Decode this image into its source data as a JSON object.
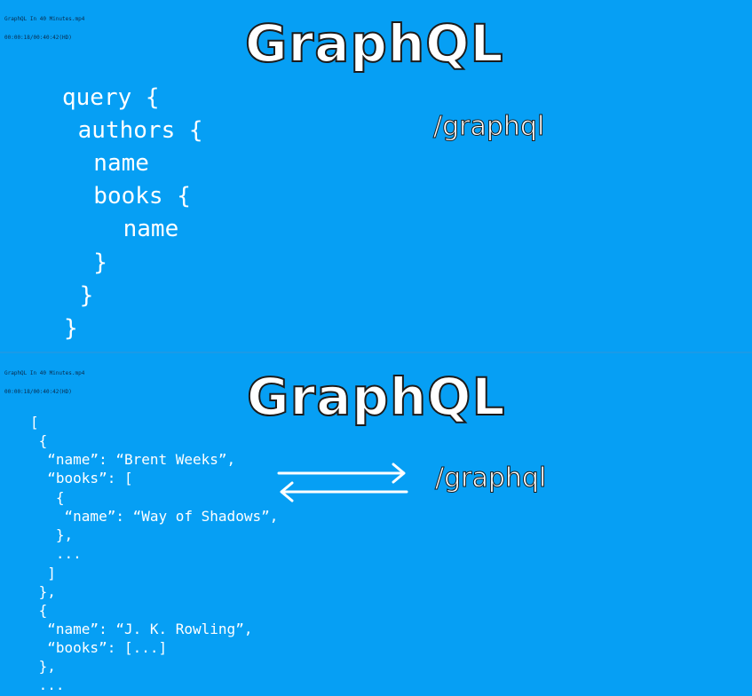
{
  "top": {
    "meta": [
      "GraphQL In 40 Minutes.mp4",
      "00:00:18/00:40:42(HD)"
    ],
    "title": "GraphQL",
    "endpoint": "/graphql",
    "query_lines": [
      "query {",
      " authors {",
      "  name",
      "  books {",
      "    name",
      "  }",
      " }",
      "}"
    ]
  },
  "bottom": {
    "meta": [
      "GraphQL In 40 Minutes.mp4",
      "00:00:18/00:40:42(HD)"
    ],
    "title": "GraphQL",
    "endpoint": "/graphql",
    "response_lines": [
      "[",
      " {",
      "  “name”: “Brent Weeks”,",
      "  “books”: [",
      "   {",
      "    “name”: “Way of Shadows”,",
      "   },",
      "   ...",
      "  ]",
      " },",
      " {",
      "  “name”: “J. K. Rowling”,",
      "  “books”: [...]",
      " },",
      " ..."
    ]
  },
  "colors": {
    "background": "#069ff4",
    "text": "#ffffff",
    "outline": "#1b1b1b"
  },
  "icons": [
    "arrow-right-icon",
    "arrow-left-icon"
  ]
}
